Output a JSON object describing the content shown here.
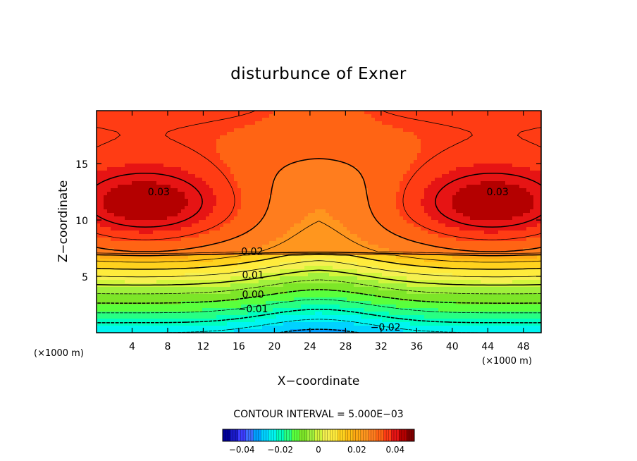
{
  "chart_data": {
    "type": "contour",
    "title": "disturbunce of Exner",
    "xlabel": "X−coordinate",
    "ylabel": "Z−coordinate",
    "x_unit_left": "(×1000 m)",
    "x_unit_right": "(×1000 m)",
    "x_ticks": [
      4,
      8,
      12,
      16,
      20,
      24,
      28,
      32,
      36,
      40,
      44,
      48
    ],
    "y_ticks": [
      5,
      10,
      15
    ],
    "xlim": [
      0,
      50
    ],
    "ylim": [
      0,
      19.7
    ],
    "contour_interval_label": "CONTOUR INTERVAL = 5.000E−03",
    "contour_interval": 0.005,
    "contour_labels": [
      {
        "text": "0.03",
        "x": 7,
        "z": 12.2
      },
      {
        "text": "0.03",
        "x": 45.1,
        "z": 12.2
      },
      {
        "text": "0.02",
        "x": 17.5,
        "z": 6.9
      },
      {
        "text": "0.01",
        "x": 17.6,
        "z": 4.8
      },
      {
        "text": "0.00",
        "x": 17.6,
        "z": 3.1
      },
      {
        "text": "−0.01",
        "x": 17.6,
        "z": 1.8
      },
      {
        "text": "−0.02",
        "x": 32.5,
        "z": 0.2
      }
    ],
    "value_range": [
      -0.05,
      0.05
    ],
    "colorbar": {
      "tick_labels": [
        "−0.04",
        "−0.02",
        "0",
        "0.02",
        "0.04"
      ],
      "tick_values": [
        -0.04,
        -0.02,
        0,
        0.02,
        0.04
      ],
      "colors": [
        "#00009a",
        "#1a1ac8",
        "#3c3cff",
        "#3c6eff",
        "#00a0ff",
        "#00d2ff",
        "#00f5f0",
        "#00ffbe",
        "#28ff82",
        "#5aff3c",
        "#7de628",
        "#a0f03c",
        "#d2f53c",
        "#f5f050",
        "#ffeb3c",
        "#ffd21e",
        "#ffbe14",
        "#ffaa14",
        "#ff961e",
        "#ff7d1e",
        "#ff6414",
        "#ff3c14",
        "#e61414",
        "#b40000",
        "#820000"
      ]
    },
    "grid": false
  }
}
